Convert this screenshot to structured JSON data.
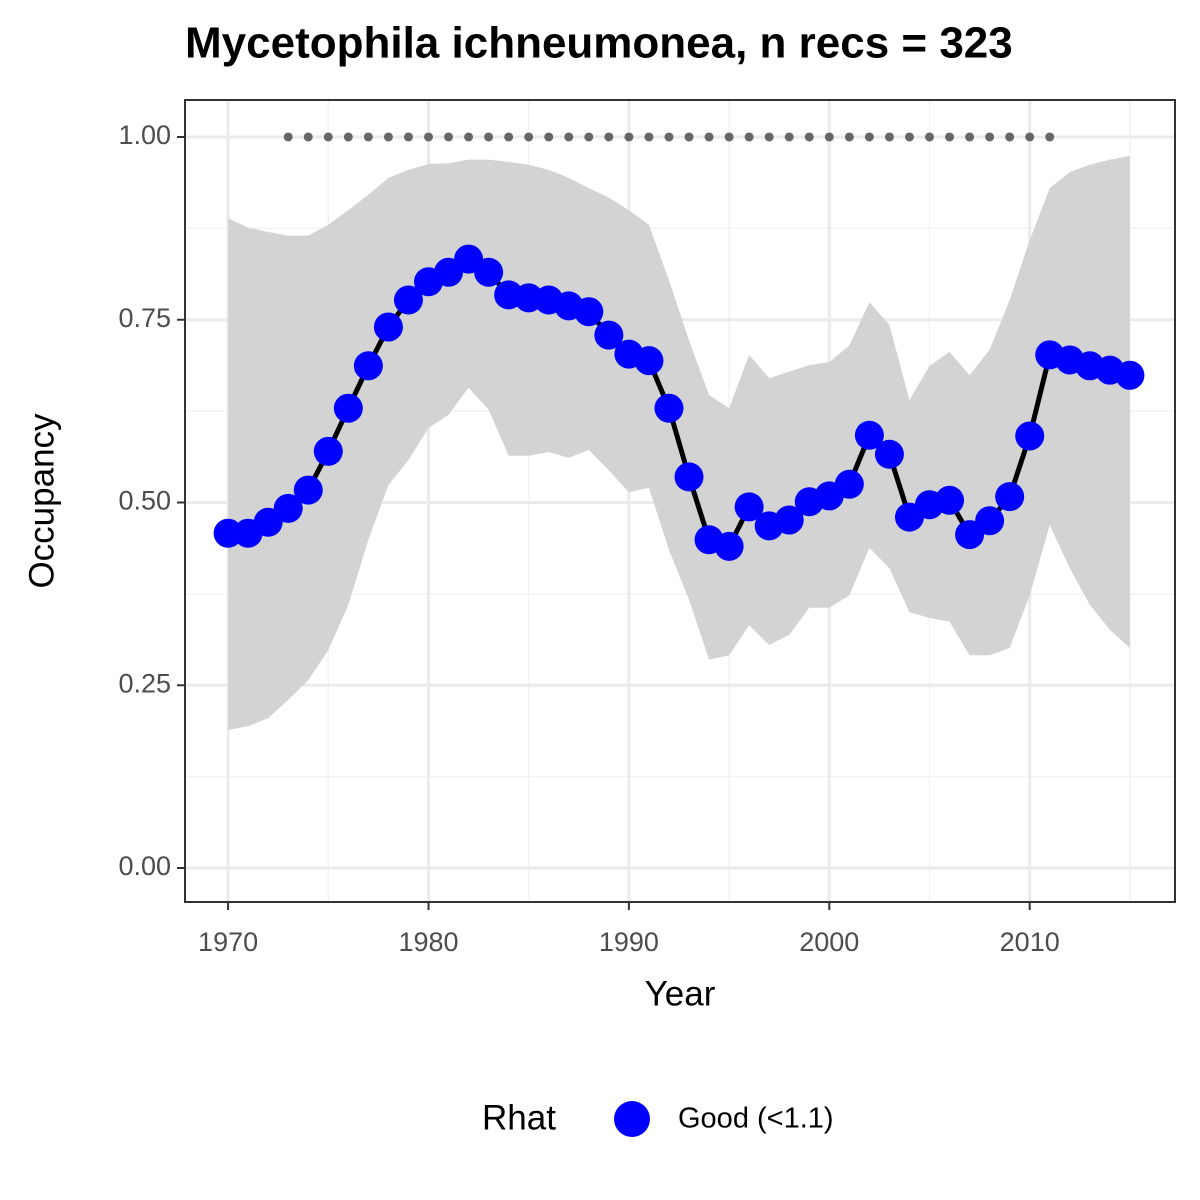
{
  "chart_data": {
    "type": "line",
    "title": "Mycetophila ichneumonea, n recs = 323",
    "x_label": "Year",
    "y_label": "Occupancy",
    "legend_title": "Rhat",
    "legend_position": "bottom",
    "grid": true,
    "xlim": [
      1967.85,
      2017.25
    ],
    "ylim": [
      -0.0465,
      1.0506
    ],
    "xticks": [
      1970,
      1980,
      1990,
      2000,
      2010
    ],
    "yticks": [
      {
        "value": 0,
        "label": "0.00"
      },
      {
        "value": 0.25,
        "label": "0.25"
      },
      {
        "value": 0.5,
        "label": "0.50"
      },
      {
        "value": 0.75,
        "label": "0.75"
      },
      {
        "value": 1,
        "label": "1.00"
      }
    ],
    "x": [
      1970,
      1971,
      1972,
      1973,
      1974,
      1975,
      1976,
      1977,
      1978,
      1979,
      1980,
      1981,
      1982,
      1983,
      1984,
      1985,
      1986,
      1987,
      1988,
      1989,
      1990,
      1991,
      1992,
      1993,
      1994,
      1995,
      1996,
      1997,
      1998,
      1999,
      2000,
      2001,
      2002,
      2003,
      2004,
      2005,
      2006,
      2007,
      2008,
      2009,
      2010,
      2011,
      2012,
      2013,
      2014,
      2015
    ],
    "series": [
      {
        "name": "Good (<1.1)",
        "color": "#0000ff",
        "line_color": "#000000",
        "values": [
          0.458,
          0.458,
          0.473,
          0.492,
          0.517,
          0.57,
          0.629,
          0.687,
          0.74,
          0.777,
          0.802,
          0.815,
          0.833,
          0.815,
          0.784,
          0.78,
          0.777,
          0.769,
          0.761,
          0.729,
          0.703,
          0.694,
          0.629,
          0.535,
          0.449,
          0.44,
          0.494,
          0.468,
          0.476,
          0.501,
          0.509,
          0.525,
          0.592,
          0.566,
          0.48,
          0.497,
          0.503,
          0.456,
          0.475,
          0.508,
          0.591,
          0.702,
          0.695,
          0.687,
          0.681,
          0.674
        ]
      }
    ],
    "band": {
      "color": "#d3d3d3",
      "upper": [
        0.889,
        0.876,
        0.87,
        0.865,
        0.865,
        0.88,
        0.9,
        0.921,
        0.944,
        0.955,
        0.963,
        0.964,
        0.969,
        0.969,
        0.966,
        0.962,
        0.955,
        0.944,
        0.93,
        0.917,
        0.9,
        0.88,
        0.804,
        0.722,
        0.647,
        0.629,
        0.702,
        0.67,
        0.679,
        0.688,
        0.692,
        0.715,
        0.774,
        0.743,
        0.64,
        0.687,
        0.706,
        0.674,
        0.709,
        0.777,
        0.859,
        0.93,
        0.952,
        0.962,
        0.969,
        0.974
      ],
      "lower": [
        0.189,
        0.194,
        0.205,
        0.23,
        0.257,
        0.298,
        0.36,
        0.449,
        0.524,
        0.558,
        0.602,
        0.62,
        0.657,
        0.627,
        0.564,
        0.564,
        0.569,
        0.561,
        0.572,
        0.544,
        0.514,
        0.52,
        0.435,
        0.367,
        0.285,
        0.291,
        0.332,
        0.305,
        0.319,
        0.356,
        0.356,
        0.373,
        0.438,
        0.41,
        0.35,
        0.342,
        0.337,
        0.291,
        0.291,
        0.301,
        0.373,
        0.469,
        0.41,
        0.36,
        0.326,
        0.301
      ]
    },
    "records": {
      "color": "#666666",
      "x": [
        1973,
        1974,
        1975,
        1976,
        1977,
        1978,
        1979,
        1980,
        1981,
        1982,
        1983,
        1984,
        1985,
        1986,
        1987,
        1988,
        1989,
        1990,
        1991,
        1992,
        1993,
        1994,
        1995,
        1996,
        1997,
        1998,
        1999,
        2000,
        2001,
        2002,
        2003,
        2004,
        2005,
        2006,
        2007,
        2008,
        2009,
        2010,
        2011
      ],
      "values": [
        1,
        1,
        1,
        1,
        1,
        1,
        1,
        1,
        1,
        1,
        1,
        1,
        1,
        1,
        1,
        1,
        1,
        1,
        1,
        1,
        1,
        1,
        1,
        1,
        1,
        1,
        1,
        1,
        1,
        1,
        1,
        1,
        1,
        1,
        1,
        1,
        1,
        1,
        1
      ]
    }
  }
}
